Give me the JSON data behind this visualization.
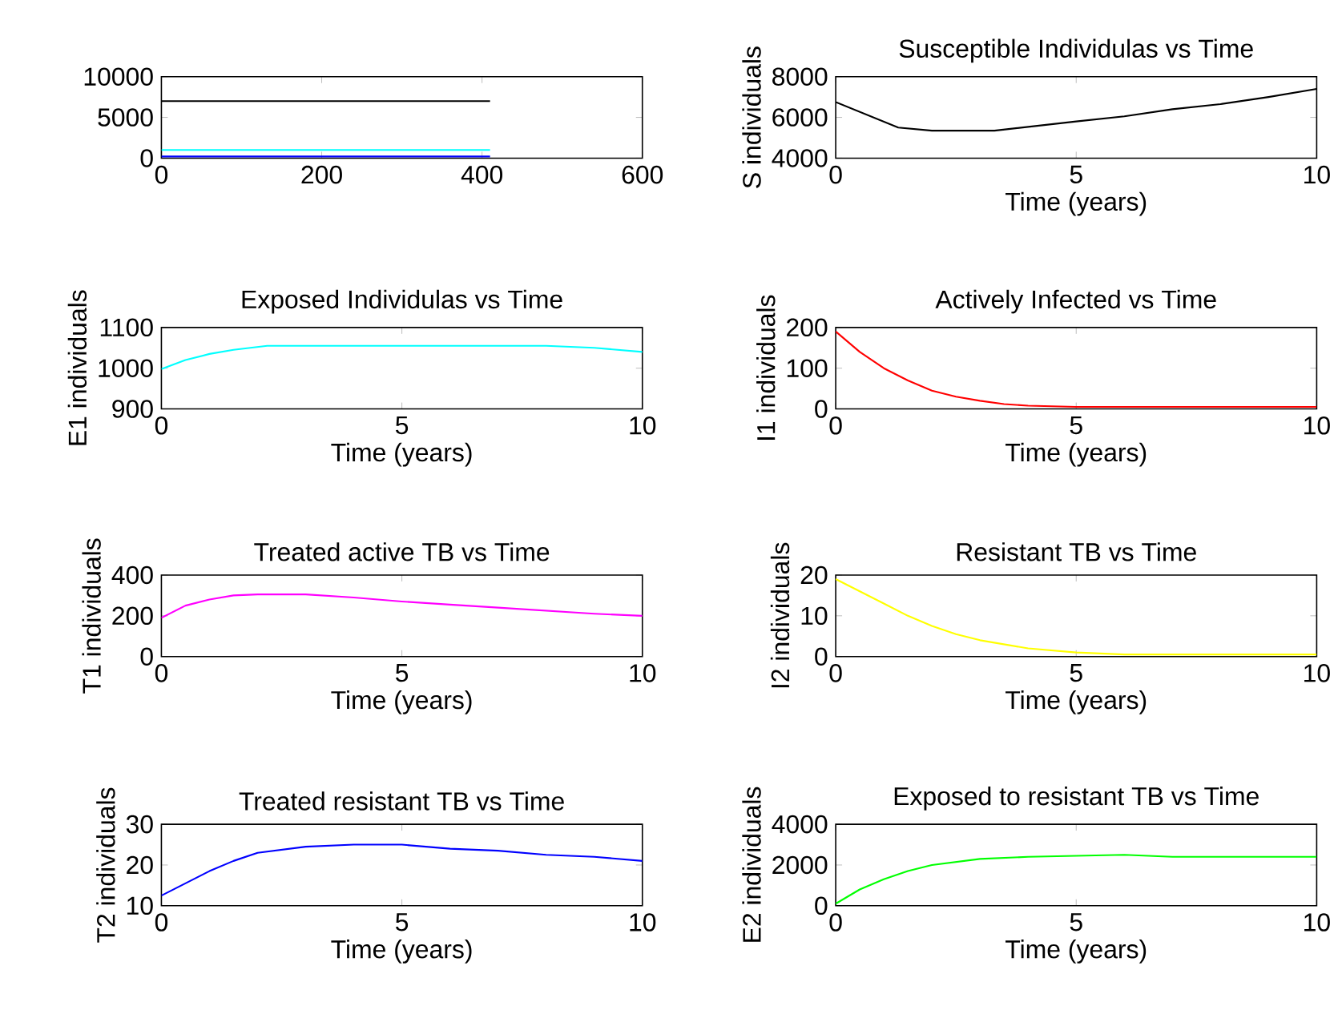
{
  "chart_data": [
    {
      "type": "line",
      "xlim": [
        0,
        600
      ],
      "ylim": [
        0,
        10000
      ],
      "xticks": [
        0,
        200,
        400,
        600
      ],
      "yticks": [
        0,
        5000,
        10000
      ],
      "series": [
        {
          "color": "#000000",
          "x": [
            0,
            410
          ],
          "values": [
            7000,
            7000
          ]
        },
        {
          "color": "#00ffff",
          "x": [
            0,
            410
          ],
          "values": [
            1000,
            1000
          ]
        },
        {
          "color": "#0000ff",
          "x": [
            0,
            410
          ],
          "values": [
            200,
            200
          ]
        }
      ]
    },
    {
      "type": "line",
      "title": "Susceptible Individulas vs Time",
      "xlabel": "Time (years)",
      "ylabel": "S individuals",
      "xlim": [
        0,
        10
      ],
      "ylim": [
        4000,
        8000
      ],
      "xticks": [
        0,
        5,
        10
      ],
      "yticks": [
        4000,
        6000,
        8000
      ],
      "series": [
        {
          "color": "#000000",
          "x": [
            0,
            1.3,
            2,
            3.3,
            5,
            6,
            7,
            8,
            9,
            10
          ],
          "values": [
            6750,
            5500,
            5350,
            5350,
            5800,
            6050,
            6400,
            6650,
            7000,
            7400
          ]
        }
      ]
    },
    {
      "type": "line",
      "title": "Exposed Individulas vs Time",
      "xlabel": "Time (years)",
      "ylabel": "E1 individuals",
      "xlim": [
        0,
        10
      ],
      "ylim": [
        900,
        1100
      ],
      "xticks": [
        0,
        5,
        10
      ],
      "yticks": [
        900,
        1000,
        1100
      ],
      "series": [
        {
          "color": "#00ffff",
          "x": [
            0,
            0.5,
            1,
            1.5,
            2.2,
            5,
            8,
            9,
            10
          ],
          "values": [
            998,
            1020,
            1035,
            1045,
            1055,
            1055,
            1055,
            1050,
            1040
          ]
        }
      ]
    },
    {
      "type": "line",
      "title": "Actively Infected vs Time",
      "xlabel": "Time (years)",
      "ylabel": "I1 individuals",
      "xlim": [
        0,
        10
      ],
      "ylim": [
        0,
        200
      ],
      "xticks": [
        0,
        5,
        10
      ],
      "yticks": [
        0,
        100,
        200
      ],
      "series": [
        {
          "color": "#ff0000",
          "x": [
            0,
            0.5,
            1,
            1.5,
            2,
            2.5,
            3,
            3.5,
            4,
            5,
            10
          ],
          "values": [
            190,
            140,
            100,
            70,
            45,
            30,
            20,
            12,
            8,
            5,
            5
          ]
        }
      ]
    },
    {
      "type": "line",
      "title": "Treated active TB vs Time",
      "xlabel": "Time (years)",
      "ylabel": "T1 individuals",
      "xlim": [
        0,
        10
      ],
      "ylim": [
        0,
        400
      ],
      "xticks": [
        0,
        5,
        10
      ],
      "yticks": [
        0,
        200,
        400
      ],
      "series": [
        {
          "color": "#ff00ff",
          "x": [
            0,
            0.5,
            1,
            1.5,
            2,
            3,
            4,
            5,
            6,
            7,
            8,
            9,
            10
          ],
          "values": [
            190,
            250,
            280,
            300,
            305,
            305,
            290,
            270,
            255,
            240,
            225,
            210,
            200
          ]
        }
      ]
    },
    {
      "type": "line",
      "title": "Resistant TB vs Time",
      "xlabel": "Time (years)",
      "ylabel": "I2 individuals",
      "xlim": [
        0,
        10
      ],
      "ylim": [
        0,
        20
      ],
      "xticks": [
        0,
        5,
        10
      ],
      "yticks": [
        0,
        10,
        20
      ],
      "series": [
        {
          "color": "#ffff00",
          "x": [
            0,
            0.5,
            1,
            1.5,
            2,
            2.5,
            3,
            3.5,
            4,
            5,
            6,
            10
          ],
          "values": [
            19,
            16,
            13,
            10,
            7.5,
            5.5,
            4,
            3,
            2,
            1,
            0.5,
            0.5
          ]
        }
      ]
    },
    {
      "type": "line",
      "title": "Treated resistant TB vs Time",
      "xlabel": "Time (years)",
      "ylabel": "T2 individuals",
      "xlim": [
        0,
        10
      ],
      "ylim": [
        10,
        30
      ],
      "xticks": [
        0,
        5,
        10
      ],
      "yticks": [
        10,
        20,
        30
      ],
      "series": [
        {
          "color": "#0000ff",
          "x": [
            0,
            0.5,
            1,
            1.5,
            2,
            3,
            4,
            5,
            6,
            7,
            8,
            9,
            10
          ],
          "values": [
            12.5,
            15.5,
            18.5,
            21,
            23,
            24.5,
            25,
            25,
            24,
            23.5,
            22.5,
            22,
            21
          ]
        }
      ]
    },
    {
      "type": "line",
      "title": "Exposed to resistant TB vs Time",
      "xlabel": "Time (years)",
      "ylabel": "E2 individuals",
      "xlim": [
        0,
        10
      ],
      "ylim": [
        0,
        4000
      ],
      "xticks": [
        0,
        5,
        10
      ],
      "yticks": [
        0,
        2000,
        4000
      ],
      "series": [
        {
          "color": "#00ff00",
          "x": [
            0,
            0.5,
            1,
            1.5,
            2,
            3,
            4,
            5,
            6,
            7,
            10
          ],
          "values": [
            100,
            800,
            1300,
            1700,
            2000,
            2300,
            2400,
            2450,
            2500,
            2400,
            2400
          ]
        }
      ]
    }
  ]
}
